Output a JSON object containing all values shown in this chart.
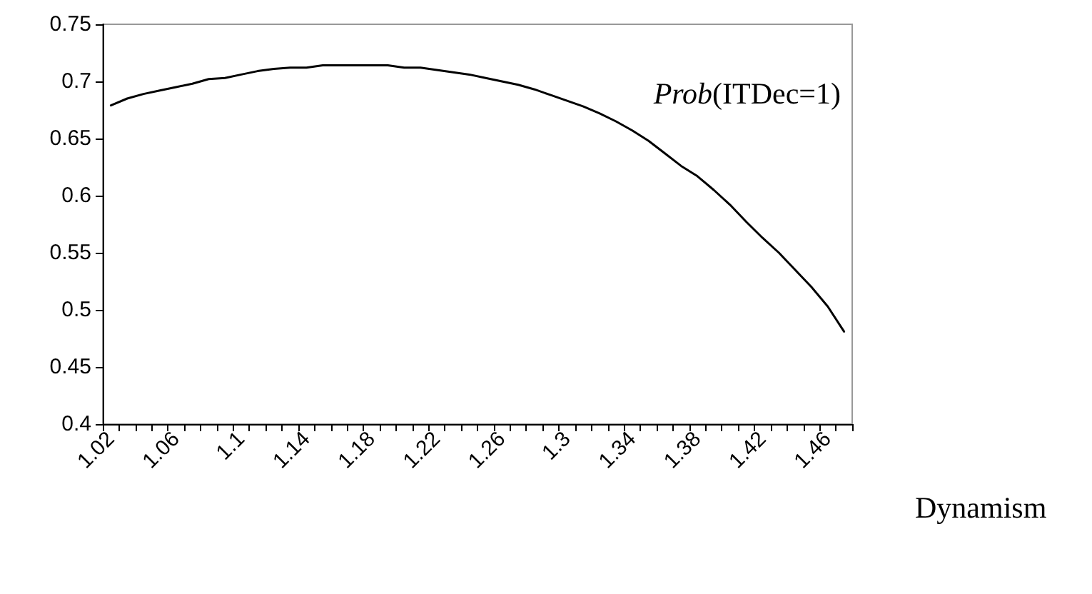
{
  "chart_data": {
    "type": "line",
    "xlabel": "Dynamism",
    "categories": [
      "1.02",
      null,
      null,
      null,
      "1.06",
      null,
      null,
      null,
      "1.1",
      null,
      null,
      null,
      "1.14",
      null,
      null,
      null,
      "1.18",
      null,
      null,
      null,
      "1.22",
      null,
      null,
      null,
      "1.26",
      null,
      null,
      null,
      "1.3",
      null,
      null,
      null,
      "1.34",
      null,
      null,
      null,
      "1.38",
      null,
      null,
      null,
      "1.42",
      null,
      null,
      null,
      "1.46",
      null
    ],
    "series": [
      {
        "name": "Prob(ITDec=1)",
        "color": "#000000",
        "values": [
          0.679,
          0.685,
          0.689,
          0.692,
          0.695,
          0.698,
          0.702,
          0.703,
          0.706,
          0.709,
          0.711,
          0.712,
          0.712,
          0.714,
          0.714,
          0.714,
          0.714,
          0.714,
          0.712,
          0.712,
          0.71,
          0.708,
          0.706,
          0.703,
          0.7,
          0.697,
          0.693,
          0.688,
          0.683,
          0.678,
          0.672,
          0.665,
          0.657,
          0.648,
          0.637,
          0.626,
          0.617,
          0.605,
          0.592,
          0.577,
          0.563,
          0.55,
          0.535,
          0.52,
          0.503,
          0.481
        ]
      }
    ],
    "ylim": [
      0.4,
      0.75
    ],
    "yticks": [
      0.4,
      0.45,
      0.5,
      0.55,
      0.6,
      0.65,
      0.7,
      0.75
    ],
    "grid": false,
    "legend": false,
    "marker": "none",
    "line_style": "solid"
  }
}
